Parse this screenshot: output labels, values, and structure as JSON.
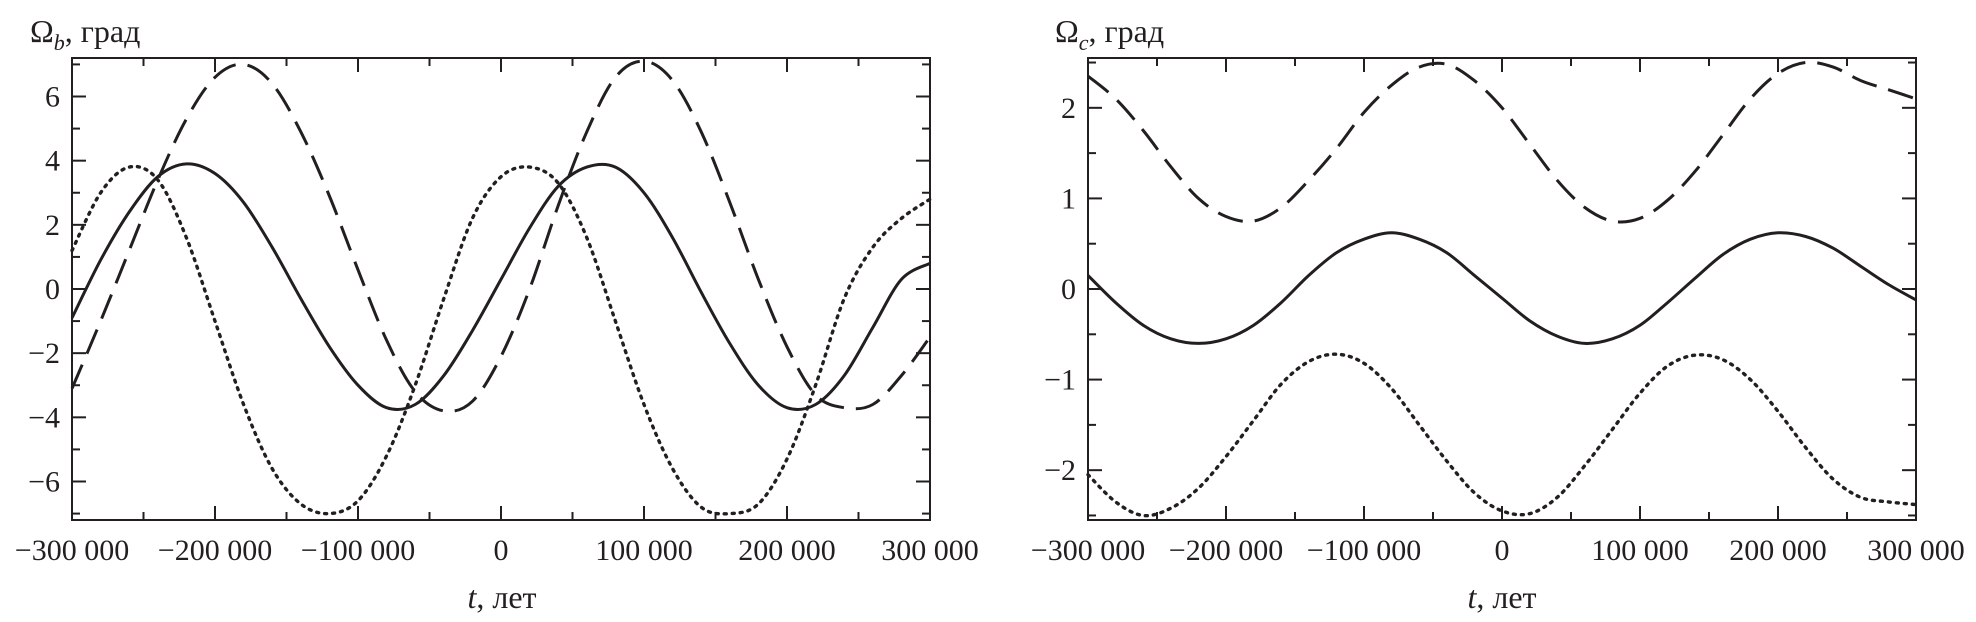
{
  "chart_data": [
    {
      "type": "line",
      "id": "omega-b",
      "title_symbol": "Ω",
      "title_subscript": "b",
      "title_suffix": ", град",
      "xlabel_italic": "t",
      "xlabel_suffix": ", лет",
      "xlim": [
        -300000,
        300000
      ],
      "ylim": [
        -7.2,
        7.2
      ],
      "xticks": [
        -300000,
        -200000,
        -100000,
        0,
        100000,
        200000,
        300000
      ],
      "xtick_labels": [
        "−300 000",
        "−200 000",
        "−100 000",
        "0",
        "100 000",
        "200 000",
        "300 000"
      ],
      "yticks": [
        -6,
        -4,
        -2,
        0,
        2,
        4,
        6
      ],
      "ytick_labels": [
        "−6",
        "−4",
        "−2",
        "0",
        "2",
        "4",
        "6"
      ],
      "series": [
        {
          "name": "solid",
          "style": "solid",
          "x": [
            -300000,
            -280000,
            -260000,
            -240000,
            -220000,
            -200000,
            -180000,
            -160000,
            -140000,
            -120000,
            -100000,
            -80000,
            -60000,
            -40000,
            -20000,
            0,
            20000,
            40000,
            60000,
            80000,
            100000,
            120000,
            140000,
            160000,
            180000,
            200000,
            220000,
            240000,
            260000,
            280000,
            300000
          ],
          "y": [
            -0.9,
            0.9,
            2.4,
            3.5,
            3.9,
            3.6,
            2.7,
            1.3,
            -0.3,
            -1.8,
            -3.0,
            -3.7,
            -3.6,
            -2.7,
            -1.3,
            0.3,
            1.9,
            3.2,
            3.8,
            3.8,
            3.0,
            1.6,
            -0.1,
            -1.7,
            -3.0,
            -3.7,
            -3.6,
            -2.7,
            -1.2,
            0.3,
            0.8
          ]
        },
        {
          "name": "dashed",
          "style": "dashed",
          "x": [
            -300000,
            -280000,
            -260000,
            -240000,
            -220000,
            -200000,
            -180000,
            -160000,
            -140000,
            -120000,
            -100000,
            -80000,
            -60000,
            -40000,
            -20000,
            0,
            20000,
            40000,
            60000,
            80000,
            100000,
            120000,
            140000,
            160000,
            180000,
            200000,
            220000,
            240000,
            260000,
            280000,
            300000
          ],
          "y": [
            -3.1,
            -1.0,
            1.2,
            3.4,
            5.3,
            6.6,
            7.0,
            6.4,
            4.9,
            2.9,
            0.6,
            -1.6,
            -3.2,
            -3.8,
            -3.5,
            -2.1,
            0.0,
            2.6,
            4.9,
            6.6,
            7.1,
            6.5,
            4.9,
            2.7,
            0.3,
            -1.8,
            -3.3,
            -3.7,
            -3.6,
            -2.7,
            -1.5
          ]
        },
        {
          "name": "dotted",
          "style": "dotted",
          "x": [
            -300000,
            -280000,
            -260000,
            -240000,
            -220000,
            -200000,
            -180000,
            -160000,
            -140000,
            -120000,
            -100000,
            -80000,
            -60000,
            -40000,
            -20000,
            0,
            20000,
            40000,
            60000,
            80000,
            100000,
            120000,
            140000,
            160000,
            180000,
            200000,
            220000,
            240000,
            260000,
            280000,
            300000
          ],
          "y": [
            1.2,
            3.0,
            3.8,
            3.4,
            1.6,
            -1.0,
            -3.6,
            -5.6,
            -6.7,
            -7.0,
            -6.6,
            -5.2,
            -3.0,
            -0.3,
            2.2,
            3.5,
            3.8,
            3.3,
            1.6,
            -1.0,
            -3.6,
            -5.6,
            -6.8,
            -7.0,
            -6.7,
            -5.3,
            -3.0,
            -0.3,
            1.3,
            2.2,
            2.8
          ]
        }
      ]
    },
    {
      "type": "line",
      "id": "omega-c",
      "title_symbol": "Ω",
      "title_subscript": "c",
      "title_suffix": ", град",
      "xlabel_italic": "t",
      "xlabel_suffix": ", лет",
      "xlim": [
        -300000,
        300000
      ],
      "ylim": [
        -2.55,
        2.55
      ],
      "xticks": [
        -300000,
        -200000,
        -100000,
        0,
        100000,
        200000,
        300000
      ],
      "xtick_labels": [
        "−300 000",
        "−200 000",
        "−100 000",
        "0",
        "100 000",
        "200 000",
        "300 000"
      ],
      "yticks": [
        -2,
        -1,
        0,
        1,
        2
      ],
      "ytick_labels": [
        "−2",
        "−1",
        "0",
        "1",
        "2"
      ],
      "series": [
        {
          "name": "solid",
          "style": "solid",
          "x": [
            -300000,
            -280000,
            -260000,
            -240000,
            -220000,
            -200000,
            -180000,
            -160000,
            -140000,
            -120000,
            -100000,
            -80000,
            -60000,
            -40000,
            -20000,
            0,
            20000,
            40000,
            60000,
            80000,
            100000,
            120000,
            140000,
            160000,
            180000,
            200000,
            220000,
            240000,
            260000,
            280000,
            300000
          ],
          "y": [
            0.15,
            -0.15,
            -0.4,
            -0.55,
            -0.6,
            -0.55,
            -0.4,
            -0.15,
            0.15,
            0.4,
            0.55,
            0.62,
            0.55,
            0.4,
            0.15,
            -0.1,
            -0.35,
            -0.52,
            -0.6,
            -0.55,
            -0.4,
            -0.15,
            0.12,
            0.38,
            0.55,
            0.62,
            0.58,
            0.45,
            0.25,
            0.05,
            -0.12
          ]
        },
        {
          "name": "dashed",
          "style": "dashed",
          "x": [
            -300000,
            -280000,
            -260000,
            -240000,
            -220000,
            -200000,
            -180000,
            -160000,
            -140000,
            -120000,
            -100000,
            -80000,
            -60000,
            -40000,
            -20000,
            0,
            20000,
            40000,
            60000,
            80000,
            100000,
            120000,
            140000,
            160000,
            180000,
            200000,
            220000,
            240000,
            260000,
            280000,
            300000
          ],
          "y": [
            2.35,
            2.1,
            1.75,
            1.35,
            1.0,
            0.8,
            0.75,
            0.9,
            1.2,
            1.55,
            1.95,
            2.25,
            2.45,
            2.48,
            2.3,
            2.0,
            1.6,
            1.2,
            0.9,
            0.75,
            0.78,
            0.98,
            1.3,
            1.7,
            2.1,
            2.38,
            2.5,
            2.45,
            2.3,
            2.2,
            2.1
          ]
        },
        {
          "name": "dotted",
          "style": "dotted",
          "x": [
            -300000,
            -280000,
            -260000,
            -240000,
            -220000,
            -200000,
            -180000,
            -160000,
            -140000,
            -120000,
            -100000,
            -80000,
            -60000,
            -40000,
            -20000,
            0,
            20000,
            40000,
            60000,
            80000,
            100000,
            120000,
            140000,
            160000,
            180000,
            200000,
            220000,
            240000,
            260000,
            280000,
            300000
          ],
          "y": [
            -2.05,
            -2.35,
            -2.5,
            -2.42,
            -2.2,
            -1.85,
            -1.45,
            -1.05,
            -0.8,
            -0.72,
            -0.82,
            -1.1,
            -1.5,
            -1.9,
            -2.25,
            -2.45,
            -2.48,
            -2.3,
            -1.95,
            -1.55,
            -1.15,
            -0.85,
            -0.73,
            -0.78,
            -1.0,
            -1.35,
            -1.75,
            -2.1,
            -2.3,
            -2.35,
            -2.38
          ]
        }
      ]
    }
  ]
}
